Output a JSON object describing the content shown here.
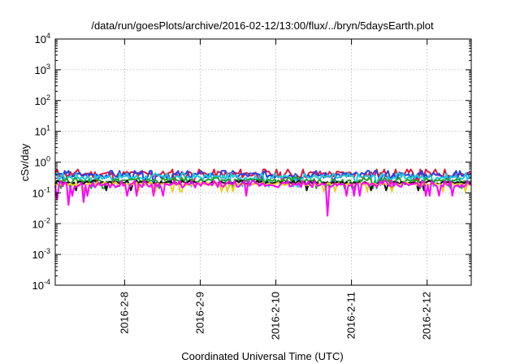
{
  "chart_data": {
    "type": "line",
    "title": "/data/run/goesPlots/archive/2016-02-12/13:00/flux/../bryn/5daysEarth.plot",
    "xlabel": "Coordinated Universal Time (UTC)",
    "ylabel": "cSv/day",
    "yscale": "log",
    "ylim": [
      0.0001,
      10000
    ],
    "y_ticks": [
      {
        "value": 0.0001,
        "base": "10",
        "exp": "-4"
      },
      {
        "value": 0.001,
        "base": "10",
        "exp": "-3"
      },
      {
        "value": 0.01,
        "base": "10",
        "exp": "-2"
      },
      {
        "value": 0.1,
        "base": "10",
        "exp": "-1"
      },
      {
        "value": 1,
        "base": "10",
        "exp": "0"
      },
      {
        "value": 10,
        "base": "10",
        "exp": "1"
      },
      {
        "value": 100,
        "base": "10",
        "exp": "2"
      },
      {
        "value": 1000,
        "base": "10",
        "exp": "3"
      },
      {
        "value": 10000,
        "base": "10",
        "exp": "4"
      }
    ],
    "xlim": [
      "2016-02-07 02:00",
      "2016-02-12 14:00"
    ],
    "x_ticks": [
      "2016-2-8",
      "2016-2-9",
      "2016-2-10",
      "2016-2-11",
      "2016-2-12"
    ],
    "grid": true,
    "series": [
      {
        "color": "#e0183c",
        "base": 0.4,
        "spread": 0.28,
        "dips": [],
        "min": 0.2
      },
      {
        "color": "#2a3fe0",
        "base": 0.37,
        "spread": 0.25,
        "dips": [],
        "min": 0.18
      },
      {
        "color": "#20c8d8",
        "base": 0.32,
        "spread": 0.22,
        "dips": [],
        "min": 0.16
      },
      {
        "color": "#22a02a",
        "base": 0.25,
        "spread": 0.15,
        "dips": [],
        "min": 0.14
      },
      {
        "color": "#101010",
        "base": 0.21,
        "spread": 0.12,
        "dips": [],
        "min": 0.12
      },
      {
        "color": "#e8d020",
        "base": 0.19,
        "spread": 0.1,
        "dips": [],
        "min": 0.11
      },
      {
        "color": "#ff00ff",
        "base": 0.18,
        "spread": 0.22,
        "dips": [
          [
            "2016-02-07 02:30",
            0.06
          ],
          [
            "2016-02-07 06:00",
            0.04
          ],
          [
            "2016-02-07 11:00",
            0.05
          ],
          [
            "2016-02-10 16:30",
            0.018
          ]
        ],
        "min": 0.08
      }
    ]
  }
}
